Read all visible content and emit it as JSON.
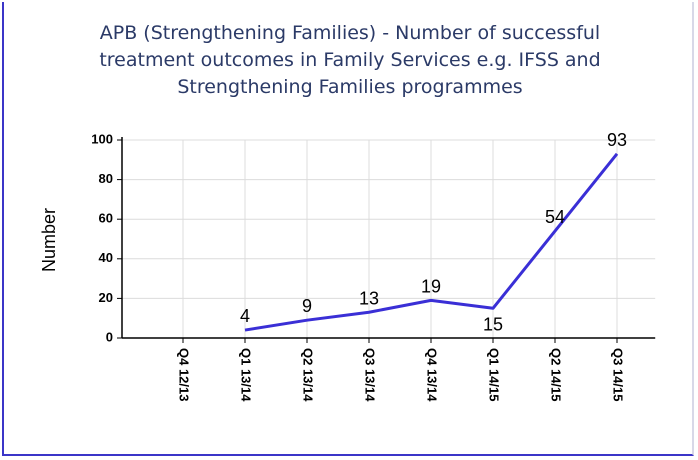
{
  "chart_data": {
    "type": "line",
    "title": "APB (Strengthening Families) - Number of successful treatment outcomes in Family Services e.g. IFSS and Strengthening Families programmes",
    "y_label": "Number",
    "categories": [
      "Q4 12/13",
      "Q1 13/14",
      "Q2 13/14",
      "Q3 13/14",
      "Q4 13/14",
      "Q1 14/15",
      "Q2 14/15",
      "Q3 14/15"
    ],
    "series": [
      {
        "name": "Number",
        "color": "#3a2fd6",
        "values": [
          null,
          4,
          9,
          13,
          19,
          15,
          54,
          93
        ]
      }
    ],
    "ylim": [
      0,
      100
    ],
    "yticks": [
      0,
      20,
      40,
      60,
      80,
      100
    ],
    "grid": true,
    "legend": false
  }
}
